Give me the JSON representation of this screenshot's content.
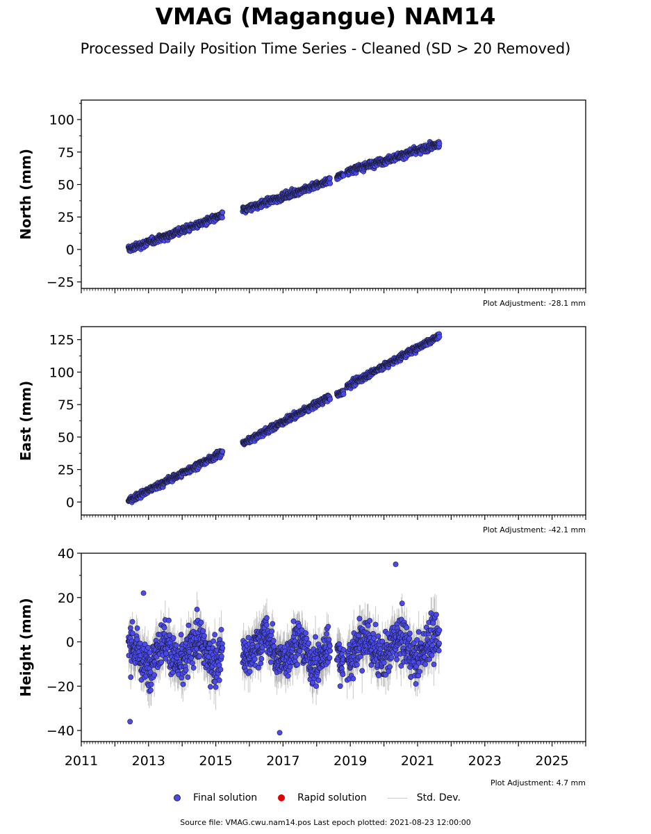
{
  "title": "VMAG (Magangue) NAM14",
  "subtitle": "Processed Daily Position Time Series - Cleaned (SD > 20 Removed)",
  "colors": {
    "final": "#4a4af0",
    "rapid": "#e00000",
    "stddev": "#c8c8c8"
  },
  "legend": {
    "final": "Final solution",
    "rapid": "Rapid solution",
    "stddev": "Std. Dev."
  },
  "footer": "Source file: VMAG.cwu.nam14.pos  Last epoch plotted: 2021-08-23 12:00:00",
  "chart_data": [
    {
      "type": "scatter",
      "ylabel": "North (mm)",
      "adjustment": "Plot Adjustment: -28.1 mm",
      "xlim": [
        2011,
        2026
      ],
      "ylim": [
        -30,
        115
      ],
      "yticks": [
        -25,
        0,
        25,
        50,
        75,
        100
      ],
      "ytick_labels": [
        "−25",
        "0",
        "25",
        "50",
        "75",
        "100"
      ],
      "x_tick_labels_shown": false,
      "segments": [
        {
          "x": [
            2012.4,
            2015.2
          ],
          "y": [
            0,
            26
          ],
          "scatter": 2.2,
          "stddev": 2.5
        },
        {
          "x": [
            2015.8,
            2018.4
          ],
          "y": [
            30,
            53
          ],
          "scatter": 2.2,
          "stddev": 2.5
        },
        {
          "x": [
            2018.6,
            2018.8
          ],
          "y": [
            56,
            58
          ],
          "scatter": 1.5,
          "stddev": 2
        },
        {
          "x": [
            2018.9,
            2021.65
          ],
          "y": [
            60,
            81
          ],
          "scatter": 2.2,
          "stddev": 2.5
        }
      ]
    },
    {
      "type": "scatter",
      "ylabel": "East (mm)",
      "adjustment": "Plot Adjustment: -42.1 mm",
      "xlim": [
        2011,
        2026
      ],
      "ylim": [
        -10,
        135
      ],
      "yticks": [
        0,
        25,
        50,
        75,
        100,
        125
      ],
      "ytick_labels": [
        "0",
        "25",
        "50",
        "75",
        "100",
        "125"
      ],
      "x_tick_labels_shown": false,
      "segments": [
        {
          "x": [
            2012.4,
            2015.2
          ],
          "y": [
            1,
            38
          ],
          "scatter": 2.0,
          "stddev": 2.5
        },
        {
          "x": [
            2015.8,
            2018.4
          ],
          "y": [
            45,
            81
          ],
          "scatter": 2.0,
          "stddev": 2.5
        },
        {
          "x": [
            2018.6,
            2018.8
          ],
          "y": [
            82,
            85
          ],
          "scatter": 1.5,
          "stddev": 2
        },
        {
          "x": [
            2018.9,
            2021.65
          ],
          "y": [
            89,
            128
          ],
          "scatter": 2.0,
          "stddev": 2.5
        }
      ]
    },
    {
      "type": "scatter",
      "ylabel": "Height (mm)",
      "adjustment": "Plot Adjustment: 4.7 mm",
      "xlim": [
        2011,
        2026
      ],
      "ylim": [
        -45,
        40
      ],
      "yticks": [
        -40,
        -20,
        0,
        20,
        40
      ],
      "ytick_labels": [
        "−40",
        "−20",
        "0",
        "20",
        "40"
      ],
      "x_tick_labels_shown": true,
      "xticks": [
        2011,
        2013,
        2015,
        2017,
        2019,
        2021,
        2023,
        2025
      ],
      "xtick_labels": [
        "2011",
        "2013",
        "2015",
        "2017",
        "2019",
        "2021",
        "2023",
        "2025"
      ],
      "segments": [
        {
          "x": [
            2012.4,
            2015.2
          ],
          "y": [
            -6,
            -4
          ],
          "scatter": 8,
          "stddev": 7
        },
        {
          "x": [
            2015.8,
            2018.4
          ],
          "y": [
            -2,
            -6
          ],
          "scatter": 8,
          "stddev": 7
        },
        {
          "x": [
            2018.6,
            2018.8
          ],
          "y": [
            -6,
            -6
          ],
          "scatter": 7,
          "stddev": 6
        },
        {
          "x": [
            2018.9,
            2021.65
          ],
          "y": [
            -3,
            -3
          ],
          "scatter": 8,
          "stddev": 7
        }
      ],
      "outliers": [
        [
          2012.85,
          22
        ],
        [
          2012.45,
          -36
        ],
        [
          2016.9,
          -41
        ],
        [
          2020.35,
          35
        ],
        [
          2018.7,
          -20
        ]
      ]
    }
  ]
}
